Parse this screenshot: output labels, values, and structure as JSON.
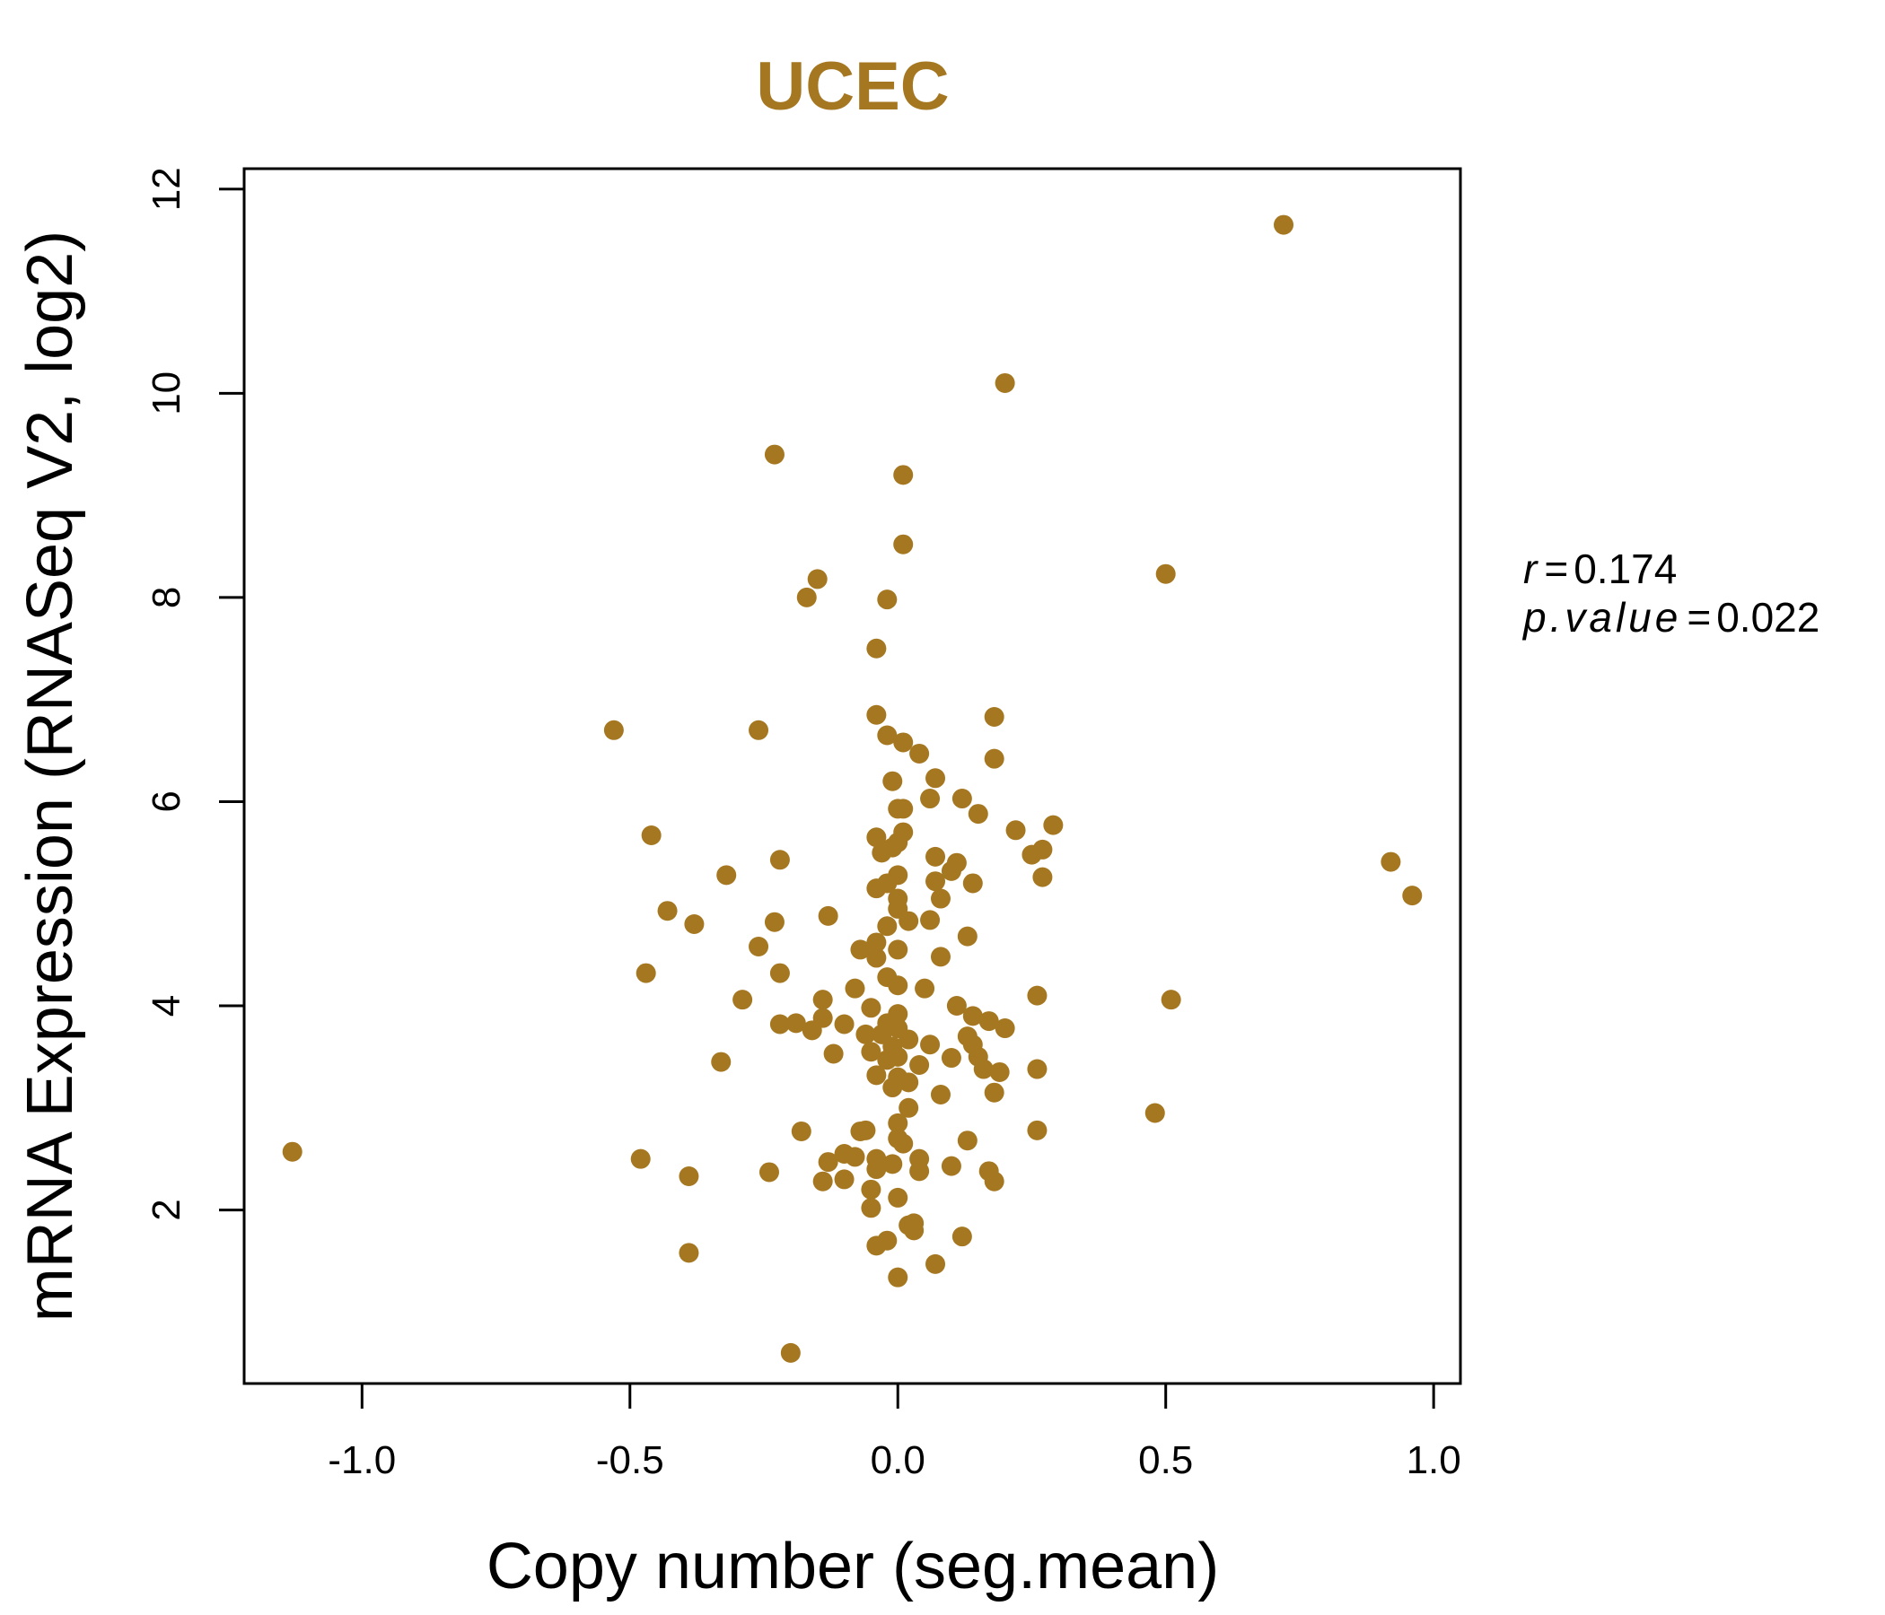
{
  "colors": {
    "accent": "#A57721"
  },
  "chart_data": {
    "type": "scatter",
    "title": "UCEC",
    "xlabel": "Copy number (seg.mean)",
    "ylabel": "mRNA Expression (RNASeq V2, log2)",
    "xlim": [
      -1.22,
      1.05
    ],
    "ylim": [
      0.3,
      12.2
    ],
    "xticks": [
      -1.0,
      -0.5,
      0.0,
      0.5,
      1.0
    ],
    "xtick_labels": [
      "-1.0",
      "-0.5",
      "0.0",
      "0.5",
      "1.0"
    ],
    "yticks": [
      2,
      4,
      6,
      8,
      10,
      12
    ],
    "ytick_labels": [
      "2",
      "4",
      "6",
      "8",
      "10",
      "12"
    ],
    "annotations": {
      "r_label": "r",
      "r_value": "0.174",
      "p_label": "p.value",
      "p_value": "0.022",
      "equals": "="
    },
    "points": [
      [
        0.72,
        11.65
      ],
      [
        0.2,
        10.1
      ],
      [
        -0.23,
        9.4
      ],
      [
        0.01,
        9.2
      ],
      [
        0.01,
        8.52
      ],
      [
        0.5,
        8.23
      ],
      [
        -0.15,
        8.18
      ],
      [
        -0.17,
        8.0
      ],
      [
        -0.02,
        7.98
      ],
      [
        -0.04,
        7.5
      ],
      [
        -0.53,
        6.7
      ],
      [
        -0.26,
        6.7
      ],
      [
        -0.04,
        6.85
      ],
      [
        0.18,
        6.83
      ],
      [
        -0.02,
        6.65
      ],
      [
        0.01,
        6.58
      ],
      [
        0.04,
        6.47
      ],
      [
        0.18,
        6.42
      ],
      [
        0.07,
        6.23
      ],
      [
        -0.01,
        6.2
      ],
      [
        0.06,
        6.03
      ],
      [
        0.12,
        6.03
      ],
      [
        0.0,
        5.93
      ],
      [
        0.01,
        5.93
      ],
      [
        0.15,
        5.88
      ],
      [
        0.22,
        5.72
      ],
      [
        0.29,
        5.77
      ],
      [
        0.01,
        5.7
      ],
      [
        -0.46,
        5.67
      ],
      [
        -0.04,
        5.65
      ],
      [
        0.0,
        5.6
      ],
      [
        -0.03,
        5.5
      ],
      [
        -0.01,
        5.55
      ],
      [
        0.25,
        5.48
      ],
      [
        0.27,
        5.53
      ],
      [
        0.07,
        5.46
      ],
      [
        -0.22,
        5.43
      ],
      [
        0.11,
        5.4
      ],
      [
        0.1,
        5.32
      ],
      [
        -0.32,
        5.28
      ],
      [
        0.0,
        5.28
      ],
      [
        0.27,
        5.26
      ],
      [
        0.07,
        5.22
      ],
      [
        0.14,
        5.2
      ],
      [
        -0.02,
        5.2
      ],
      [
        -0.04,
        5.15
      ],
      [
        0.0,
        5.05
      ],
      [
        0.08,
        5.05
      ],
      [
        0.92,
        5.41
      ],
      [
        0.96,
        5.08
      ],
      [
        -0.43,
        4.93
      ],
      [
        -0.13,
        4.88
      ],
      [
        0.0,
        4.95
      ],
      [
        0.02,
        4.83
      ],
      [
        0.06,
        4.84
      ],
      [
        -0.38,
        4.8
      ],
      [
        -0.23,
        4.82
      ],
      [
        -0.02,
        4.78
      ],
      [
        0.13,
        4.68
      ],
      [
        -0.04,
        4.62
      ],
      [
        -0.26,
        4.58
      ],
      [
        -0.07,
        4.55
      ],
      [
        0.0,
        4.55
      ],
      [
        0.08,
        4.48
      ],
      [
        -0.04,
        4.47
      ],
      [
        -0.47,
        4.32
      ],
      [
        -0.22,
        4.32
      ],
      [
        -0.02,
        4.28
      ],
      [
        0.0,
        4.2
      ],
      [
        0.05,
        4.17
      ],
      [
        -0.08,
        4.17
      ],
      [
        0.26,
        4.1
      ],
      [
        0.51,
        4.06
      ],
      [
        -0.29,
        4.06
      ],
      [
        -0.14,
        4.06
      ],
      [
        0.11,
        4.0
      ],
      [
        -0.05,
        3.98
      ],
      [
        -0.14,
        3.88
      ],
      [
        0.14,
        3.9
      ],
      [
        0.0,
        3.92
      ],
      [
        -0.22,
        3.82
      ],
      [
        -0.19,
        3.83
      ],
      [
        -0.16,
        3.76
      ],
      [
        -0.1,
        3.82
      ],
      [
        -0.02,
        3.83
      ],
      [
        0.0,
        3.78
      ],
      [
        0.2,
        3.78
      ],
      [
        0.17,
        3.85
      ],
      [
        -0.03,
        3.72
      ],
      [
        0.13,
        3.7
      ],
      [
        0.14,
        3.62
      ],
      [
        0.06,
        3.62
      ],
      [
        -0.06,
        3.72
      ],
      [
        0.02,
        3.67
      ],
      [
        -0.01,
        3.6
      ],
      [
        -0.05,
        3.55
      ],
      [
        -0.12,
        3.53
      ],
      [
        0.15,
        3.5
      ],
      [
        0.1,
        3.49
      ],
      [
        0.0,
        3.5
      ],
      [
        -0.02,
        3.47
      ],
      [
        -0.33,
        3.45
      ],
      [
        0.04,
        3.42
      ],
      [
        0.16,
        3.38
      ],
      [
        0.19,
        3.35
      ],
      [
        0.26,
        3.38
      ],
      [
        -0.04,
        3.32
      ],
      [
        0.0,
        3.3
      ],
      [
        0.02,
        3.25
      ],
      [
        -0.01,
        3.2
      ],
      [
        0.08,
        3.13
      ],
      [
        0.18,
        3.15
      ],
      [
        0.02,
        3.0
      ],
      [
        0.48,
        2.95
      ],
      [
        0.0,
        2.85
      ],
      [
        -0.18,
        2.77
      ],
      [
        -0.07,
        2.77
      ],
      [
        -0.06,
        2.78
      ],
      [
        0.26,
        2.78
      ],
      [
        0.0,
        2.7
      ],
      [
        0.13,
        2.68
      ],
      [
        0.01,
        2.65
      ],
      [
        -1.13,
        2.57
      ],
      [
        -0.48,
        2.5
      ],
      [
        -0.13,
        2.47
      ],
      [
        -0.1,
        2.55
      ],
      [
        -0.08,
        2.52
      ],
      [
        -0.04,
        2.5
      ],
      [
        0.04,
        2.5
      ],
      [
        -0.01,
        2.45
      ],
      [
        0.1,
        2.43
      ],
      [
        -0.04,
        2.4
      ],
      [
        0.04,
        2.38
      ],
      [
        0.17,
        2.38
      ],
      [
        -0.24,
        2.37
      ],
      [
        -0.39,
        2.33
      ],
      [
        -0.14,
        2.28
      ],
      [
        -0.1,
        2.3
      ],
      [
        0.18,
        2.28
      ],
      [
        -0.05,
        2.2
      ],
      [
        0.0,
        2.12
      ],
      [
        -0.05,
        2.02
      ],
      [
        0.02,
        1.85
      ],
      [
        0.03,
        1.87
      ],
      [
        0.03,
        1.8
      ],
      [
        0.12,
        1.74
      ],
      [
        -0.02,
        1.7
      ],
      [
        -0.04,
        1.65
      ],
      [
        -0.39,
        1.58
      ],
      [
        0.07,
        1.47
      ],
      [
        0.0,
        1.34
      ],
      [
        -0.2,
        0.6
      ]
    ]
  }
}
